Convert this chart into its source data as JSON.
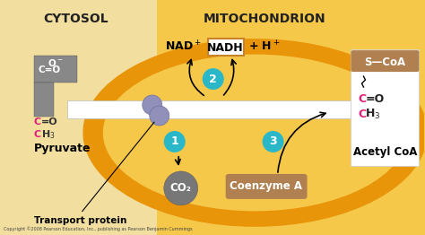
{
  "bg_color": "#f5c84a",
  "cytosol_bg": "#f2dfa0",
  "mito_outer_color": "#e8950a",
  "mito_inner_color": "#f5c84a",
  "title_cytosol": "CYTOSOL",
  "title_mito": "MITOCHONDRION",
  "co2_label": "CO₂",
  "coenzyme_label": "Coenzyme A",
  "pyruvate_label": "Pyruvate",
  "transport_label": "Transport protein",
  "acetylcoa_label": "Acetyl CoA",
  "scoa_label": "S—CoA",
  "circle_color": "#2ab8c8",
  "co2_circle_color": "#777777",
  "coenzyme_color": "#b08050",
  "pink_color": "#e0207a",
  "nadh_box_color": "#c8822a",
  "gray_struct": "#888888",
  "purple_prot": "#9090bb",
  "copyright": "Copyright ©2008 Pearson Education, Inc., publishing as Pearson Benjamin Cummings",
  "white": "#ffffff",
  "black": "#000000"
}
